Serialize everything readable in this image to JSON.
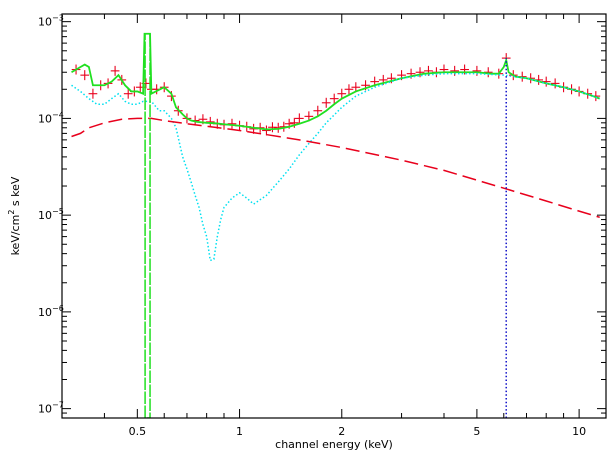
{
  "chart_data": {
    "type": "line",
    "xlabel": "channel energy (keV)",
    "ylabel_main": "keV/cm",
    "ylabel_sup": "2",
    "ylabel_tail": " s keV",
    "x_scale": "log",
    "y_scale": "log",
    "xlim": [
      0.3,
      12
    ],
    "ylim": [
      8e-08,
      0.0012
    ],
    "grid": false,
    "x_ticks": [
      {
        "value": 0.5,
        "label": "0.5"
      },
      {
        "value": 1,
        "label": "1"
      },
      {
        "value": 2,
        "label": "2"
      },
      {
        "value": 5,
        "label": "5"
      },
      {
        "value": 10,
        "label": "10"
      }
    ],
    "y_ticks": [
      {
        "value": 1e-07,
        "label": "10",
        "exp": "−7"
      },
      {
        "value": 1e-06,
        "label": "10",
        "exp": "−6"
      },
      {
        "value": 1e-05,
        "label": "10",
        "exp": "−5"
      },
      {
        "value": 0.0001,
        "label": "10",
        "exp": "−4"
      },
      {
        "value": 0.001,
        "label": "10",
        "exp": "−3"
      }
    ],
    "series": [
      {
        "role": "data-points",
        "color": "#e8001c",
        "style": "crosses",
        "x": [
          0.33,
          0.35,
          0.37,
          0.39,
          0.41,
          0.43,
          0.45,
          0.47,
          0.49,
          0.51,
          0.53,
          0.55,
          0.57,
          0.6,
          0.63,
          0.66,
          0.7,
          0.74,
          0.78,
          0.82,
          0.86,
          0.9,
          0.95,
          1.0,
          1.05,
          1.1,
          1.15,
          1.2,
          1.25,
          1.3,
          1.35,
          1.4,
          1.45,
          1.5,
          1.6,
          1.7,
          1.8,
          1.9,
          2.0,
          2.1,
          2.2,
          2.35,
          2.5,
          2.65,
          2.8,
          3.0,
          3.2,
          3.4,
          3.6,
          3.8,
          4.0,
          4.3,
          4.6,
          5.0,
          5.4,
          5.8,
          6.1,
          6.4,
          6.8,
          7.2,
          7.6,
          8.0,
          8.5,
          9.0,
          9.5,
          10.0,
          10.6,
          11.2
        ],
        "y": [
          0.00032,
          0.00028,
          0.00018,
          0.00022,
          0.00023,
          0.00031,
          0.00025,
          0.00018,
          0.00019,
          0.00021,
          0.00023,
          0.0002,
          0.0002,
          0.00021,
          0.00017,
          0.00012,
          0.0001,
          9.5e-05,
          9.8e-05,
          9.2e-05,
          8.8e-05,
          8.6e-05,
          8.8e-05,
          8.4e-05,
          8.2e-05,
          7.8e-05,
          8e-05,
          7.5e-05,
          8.1e-05,
          8e-05,
          8.2e-05,
          8.8e-05,
          9e-05,
          0.0001,
          0.000105,
          0.00012,
          0.000145,
          0.00016,
          0.00018,
          0.0002,
          0.00021,
          0.00022,
          0.00024,
          0.00025,
          0.00026,
          0.00028,
          0.00029,
          0.0003,
          0.00031,
          0.0003,
          0.00032,
          0.00031,
          0.00032,
          0.00031,
          0.0003,
          0.00029,
          0.00042,
          0.00028,
          0.00027,
          0.00026,
          0.00025,
          0.00024,
          0.00023,
          0.00021,
          0.0002,
          0.00019,
          0.00018,
          0.00017
        ]
      },
      {
        "role": "total-model",
        "color": "#20e020",
        "style": "solid",
        "x": [
          0.32,
          0.34,
          0.35,
          0.36,
          0.37,
          0.38,
          0.4,
          0.42,
          0.44,
          0.46,
          0.48,
          0.5,
          0.52,
          0.525,
          0.535,
          0.545,
          0.55,
          0.6,
          0.63,
          0.65,
          0.68,
          0.7,
          0.72,
          0.75,
          0.8,
          0.85,
          0.9,
          1.0,
          1.1,
          1.2,
          1.3,
          1.4,
          1.5,
          1.6,
          1.7,
          1.8,
          1.9,
          2.0,
          2.2,
          2.5,
          3.0,
          3.5,
          4.0,
          4.5,
          5.0,
          5.5,
          5.8,
          6.0,
          6.1,
          6.2,
          6.5,
          7.0,
          8.0,
          9.0,
          10.0,
          11.0,
          11.5
        ],
        "y": [
          0.0003,
          0.00034,
          0.00036,
          0.00034,
          0.00022,
          0.00022,
          0.00022,
          0.00024,
          0.00028,
          0.00022,
          0.00019,
          0.00019,
          0.00018,
          0.00075,
          0.00075,
          0.00075,
          0.00018,
          0.00021,
          0.00018,
          0.00013,
          0.00011,
          0.0001,
          9.5e-05,
          9.2e-05,
          9e-05,
          8.9e-05,
          8.7e-05,
          8.4e-05,
          8e-05,
          7.7e-05,
          7.8e-05,
          8.2e-05,
          8.8e-05,
          9.5e-05,
          0.000105,
          0.00012,
          0.00014,
          0.00016,
          0.00019,
          0.00022,
          0.00026,
          0.00029,
          0.0003,
          0.0003,
          0.0003,
          0.00029,
          0.00029,
          0.00034,
          0.0004,
          0.0003,
          0.00027,
          0.00026,
          0.00023,
          0.00021,
          0.00019,
          0.00017,
          0.00016
        ]
      },
      {
        "role": "model-component-1",
        "color": "#00e0f0",
        "style": "dotted",
        "x": [
          0.32,
          0.34,
          0.36,
          0.38,
          0.4,
          0.42,
          0.44,
          0.46,
          0.48,
          0.5,
          0.52,
          0.55,
          0.58,
          0.6,
          0.63,
          0.65,
          0.67,
          0.68,
          0.7,
          0.72,
          0.74,
          0.76,
          0.78,
          0.8,
          0.82,
          0.84,
          0.86,
          0.88,
          0.9,
          0.95,
          1.0,
          1.05,
          1.1,
          1.2,
          1.3,
          1.4,
          1.5,
          1.6,
          1.7,
          1.8,
          2.0,
          2.2,
          2.5,
          3.0,
          3.5,
          4.0,
          5.0,
          6.0,
          7.0,
          8.0,
          9.0,
          10.0,
          11.0,
          11.5
        ],
        "y": [
          0.00022,
          0.00019,
          0.00016,
          0.00014,
          0.00014,
          0.00016,
          0.00018,
          0.00015,
          0.00014,
          0.00014,
          0.00015,
          0.00015,
          0.00012,
          0.00012,
          0.0001,
          8e-05,
          5e-05,
          4e-05,
          3e-05,
          2.2e-05,
          1.6e-05,
          1.2e-05,
          8e-06,
          6e-06,
          3.4e-06,
          3.5e-06,
          6e-06,
          9e-06,
          1.2e-05,
          1.5e-05,
          1.7e-05,
          1.5e-05,
          1.3e-05,
          1.6e-05,
          2.2e-05,
          3e-05,
          4.2e-05,
          5.5e-05,
          7e-05,
          9e-05,
          0.00013,
          0.00017,
          0.00021,
          0.00026,
          0.00028,
          0.00029,
          0.00029,
          0.00028,
          0.00026,
          0.00023,
          0.00021,
          0.00019,
          0.00017,
          0.00016
        ]
      },
      {
        "role": "model-component-2",
        "color": "#e8001c",
        "style": "long-dash",
        "x": [
          0.32,
          0.34,
          0.36,
          0.4,
          0.45,
          0.5,
          0.55,
          0.6,
          0.7,
          0.8,
          1.0,
          1.2,
          1.5,
          2.0,
          3.0,
          4.0,
          5.0,
          6.0,
          8.0,
          10.0,
          11.5
        ],
        "y": [
          6.5e-05,
          7e-05,
          8e-05,
          9e-05,
          9.8e-05,
          0.0001,
          0.0001,
          9.5e-05,
          8.8e-05,
          8.3e-05,
          7.5e-05,
          6.8e-05,
          6e-05,
          5e-05,
          3.7e-05,
          2.9e-05,
          2.3e-05,
          1.9e-05,
          1.4e-05,
          1.1e-05,
          9.5e-06
        ]
      },
      {
        "role": "line-component-soft",
        "color": "#20e020",
        "style": "dashed",
        "x": [
          0.527,
          0.527,
          0.527,
          0.545,
          0.545,
          0.545
        ],
        "y": [
          8e-08,
          0.00075,
          8e-08,
          8e-08,
          0.00075,
          8e-08
        ]
      },
      {
        "role": "line-component-iron",
        "color": "#1010c8",
        "style": "dotted",
        "x": [
          6.1,
          6.1
        ],
        "y": [
          8e-08,
          0.00042
        ]
      }
    ]
  }
}
